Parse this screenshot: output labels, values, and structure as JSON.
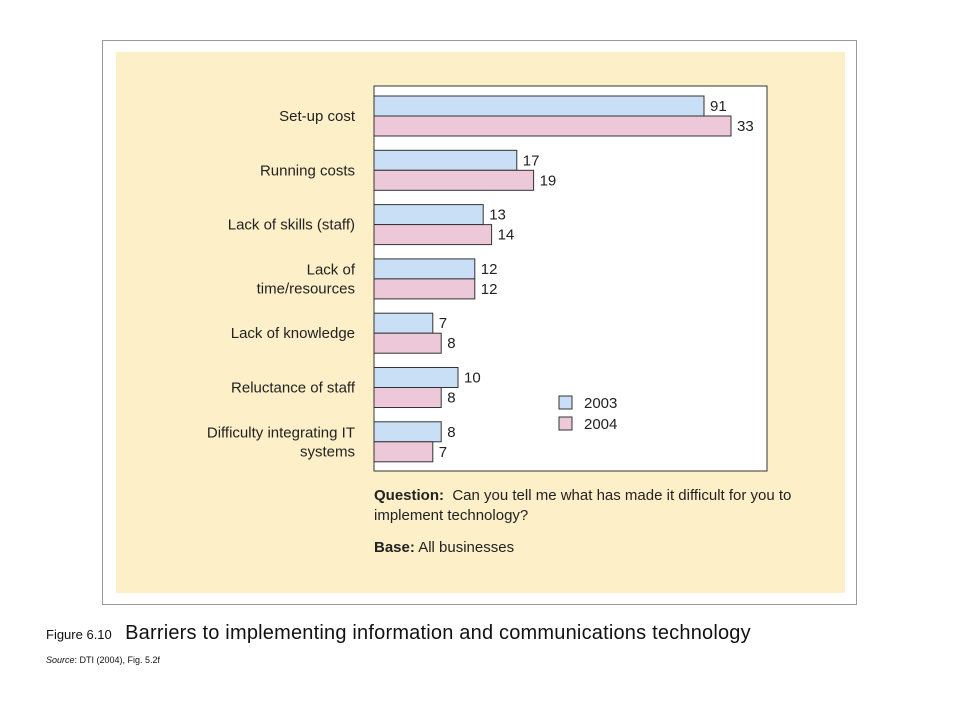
{
  "figure": {
    "number": "Figure 6.10",
    "title": "Barriers to implementing information and communications technology",
    "source_label": "Source",
    "source_text": ": DTI (2004), Fig. 5.2f"
  },
  "notes": {
    "question_label": "Question:",
    "question_text": "Can you tell me what has made it difficult for you to implement technology?",
    "base_label": "Base:",
    "base_text": "All businesses"
  },
  "chart_data": {
    "type": "bar",
    "orientation": "horizontal",
    "categories": [
      [
        "Set-up cost"
      ],
      [
        "Running costs"
      ],
      [
        "Lack of skills (staff)"
      ],
      [
        "Lack of",
        "time/resources"
      ],
      [
        "Lack of knowledge"
      ],
      [
        "Reluctance of staff"
      ],
      [
        "Difficulty integrating IT",
        "systems"
      ]
    ],
    "series": [
      {
        "name": "2003",
        "color": "#c9dff5",
        "values": [
          91,
          17,
          13,
          12,
          7,
          10,
          8
        ],
        "labels": [
          "91",
          "17",
          "13",
          "12",
          "7",
          "10",
          "8"
        ]
      },
      {
        "name": "2004",
        "color": "#ecc8d8",
        "values": [
          33,
          19,
          14,
          12,
          8,
          8,
          7
        ],
        "labels": [
          "33",
          "19",
          "14",
          "12",
          "8",
          "8",
          "7"
        ]
      }
    ],
    "legend": {
      "placement": "bottom-right"
    },
    "grid": false
  }
}
